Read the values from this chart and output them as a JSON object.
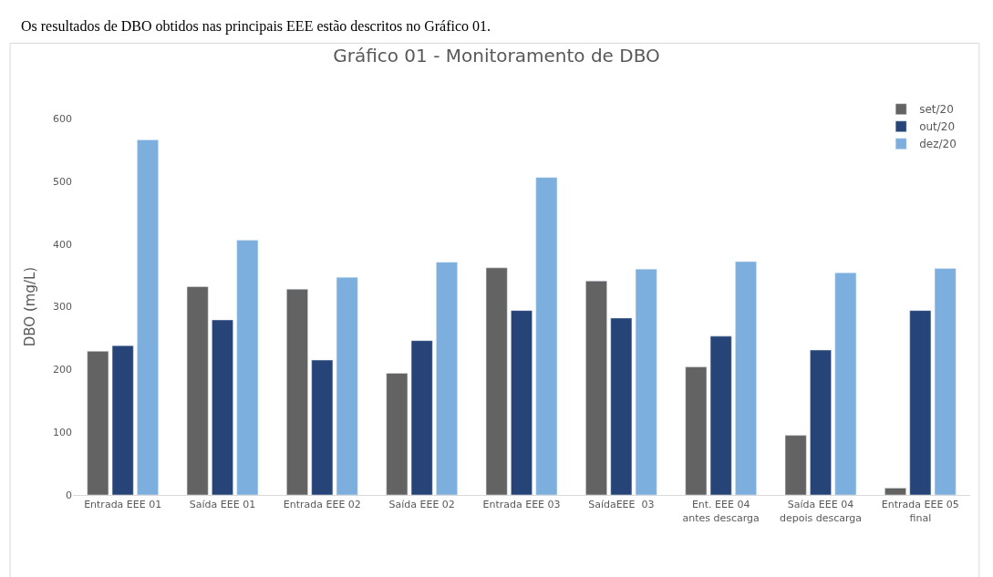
{
  "chart_data": {
    "type": "bar",
    "title": "Gráfico 01 - Monitoramento de DBO",
    "ylabel": "DBO (mg/L)",
    "annotations": [
      "Os resultados de DBO obtidos nas principais EEE estão descritos no Gráfico 01."
    ],
    "categories": [
      "Entrada EEE 01",
      "Saída EEE 01",
      "Entrada EEE 02",
      "Saída EEE 02",
      "Entrada EEE 03",
      "SaídaEEE  03",
      "Ent. EEE 04\nantes descarga",
      "Saída EEE 04\ndepois descarga",
      "Entrada EEE 05\nfinal"
    ],
    "series": [
      {
        "name": "set/20",
        "color": "#636363",
        "values": [
          229,
          332,
          328,
          194,
          362,
          341,
          204,
          95,
          11
        ]
      },
      {
        "name": "out/20",
        "color": "#264478",
        "values": [
          238,
          279,
          215,
          246,
          294,
          282,
          253,
          231,
          294
        ]
      },
      {
        "name": "dez/20",
        "color": "#7cafdd",
        "values": [
          566,
          406,
          347,
          371,
          506,
          360,
          372,
          354,
          361
        ]
      }
    ],
    "ylim": [
      0,
      600
    ],
    "yticks": [
      0,
      100,
      200,
      300,
      400,
      500,
      600
    ],
    "legend": "top right"
  }
}
